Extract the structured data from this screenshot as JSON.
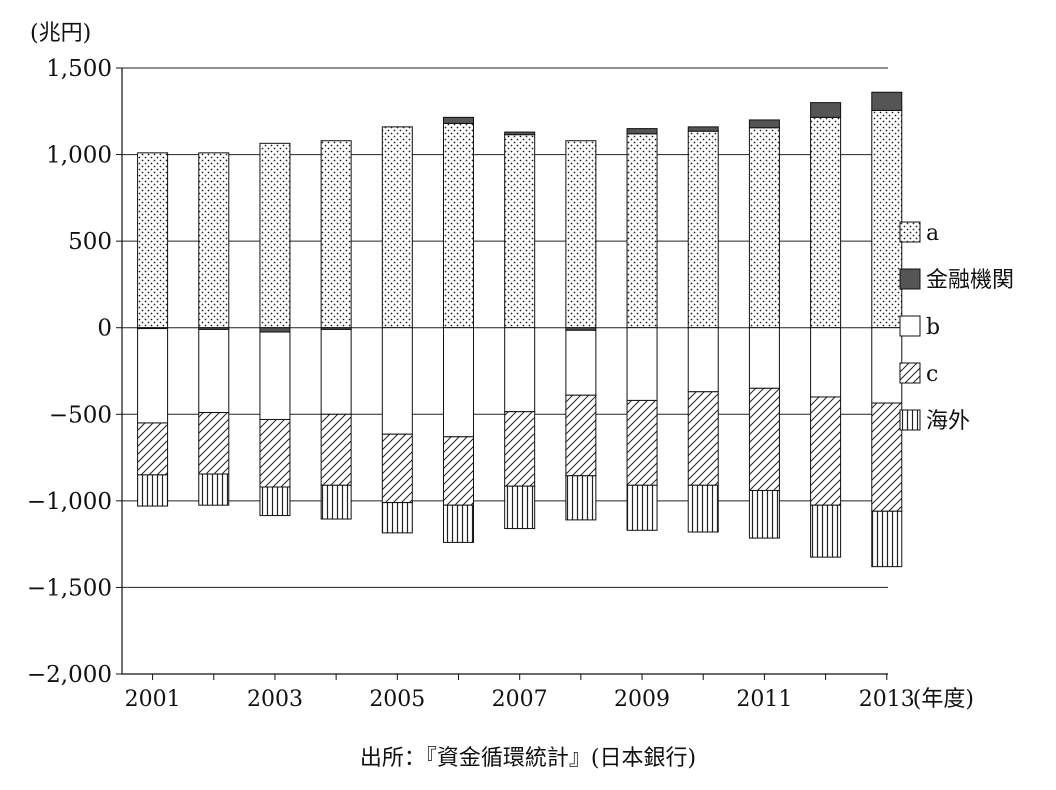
{
  "chart_data": {
    "type": "bar",
    "stacked": true,
    "unit_label": "(兆円)",
    "xlabel": "(年度)",
    "ylim": [
      -2000,
      1500
    ],
    "yticks": [
      1500,
      1000,
      500,
      0,
      -500,
      -1000,
      -1500,
      -2000
    ],
    "ytick_labels": [
      "1,500",
      "1,000",
      "500",
      "0",
      "−500",
      "−1,000",
      "−1,500",
      "−2,000"
    ],
    "categories": [
      "2001",
      "2002",
      "2003",
      "2004",
      "2005",
      "2006",
      "2007",
      "2008",
      "2009",
      "2010",
      "2011",
      "2012",
      "2013"
    ],
    "xtick_labels": [
      "2001",
      "",
      "2003",
      "",
      "2005",
      "",
      "2007",
      "",
      "2009",
      "",
      "2011",
      "",
      "2013"
    ],
    "series": [
      {
        "name": "a",
        "pattern": "dots",
        "values": [
          1010,
          1010,
          1065,
          1080,
          1160,
          1180,
          1115,
          1080,
          1120,
          1135,
          1155,
          1215,
          1255
        ]
      },
      {
        "name": "金融機関",
        "pattern": "solid",
        "color": "#555555",
        "values": [
          -5,
          -10,
          -25,
          -10,
          0,
          35,
          15,
          -15,
          30,
          25,
          45,
          85,
          105
        ]
      },
      {
        "name": "b",
        "pattern": "blank",
        "values": [
          -545,
          -480,
          -505,
          -490,
          -615,
          -630,
          -485,
          -375,
          -420,
          -370,
          -350,
          -400,
          -435
        ]
      },
      {
        "name": "c",
        "pattern": "hatch",
        "values": [
          -300,
          -355,
          -390,
          -410,
          -395,
          -395,
          -430,
          -465,
          -490,
          -540,
          -590,
          -625,
          -625
        ]
      },
      {
        "name": "海外",
        "pattern": "vlines",
        "values": [
          -180,
          -180,
          -165,
          -195,
          -175,
          -215,
          -245,
          -255,
          -260,
          -270,
          -275,
          -300,
          -320
        ]
      }
    ],
    "legend_position": "right",
    "grid": "horizontal"
  },
  "source_text": "出所：『資金循環統計』(日本銀行)"
}
